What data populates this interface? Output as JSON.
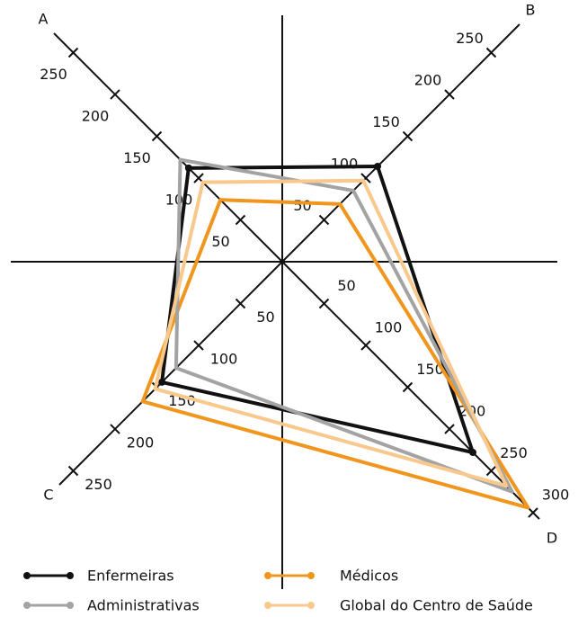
{
  "chart_data": {
    "type": "radar",
    "axes": [
      {
        "name": "A",
        "ticks": [
          50,
          100,
          150,
          200,
          250
        ]
      },
      {
        "name": "B",
        "ticks": [
          50,
          100,
          150,
          200,
          250
        ]
      },
      {
        "name": "D",
        "ticks": [
          50,
          100,
          150,
          200,
          250,
          300
        ]
      },
      {
        "name": "C",
        "ticks": [
          50,
          100,
          150,
          200,
          250
        ]
      }
    ],
    "rlim": [
      0,
      300
    ],
    "series": [
      {
        "name": "Enfermeiras",
        "color": "#111111",
        "values": [
          112,
          114,
          228,
          144
        ]
      },
      {
        "name": "Médicos",
        "color": "#f0961e",
        "values": [
          74,
          69,
          294,
          167
        ]
      },
      {
        "name": "Administrativas",
        "color": "#a3a3a3",
        "values": [
          122,
          85,
          275,
          127
        ]
      },
      {
        "name": "Global do Centro de Saúde",
        "color": "#f9c88c",
        "values": [
          95,
          97,
          268,
          152
        ]
      }
    ]
  }
}
